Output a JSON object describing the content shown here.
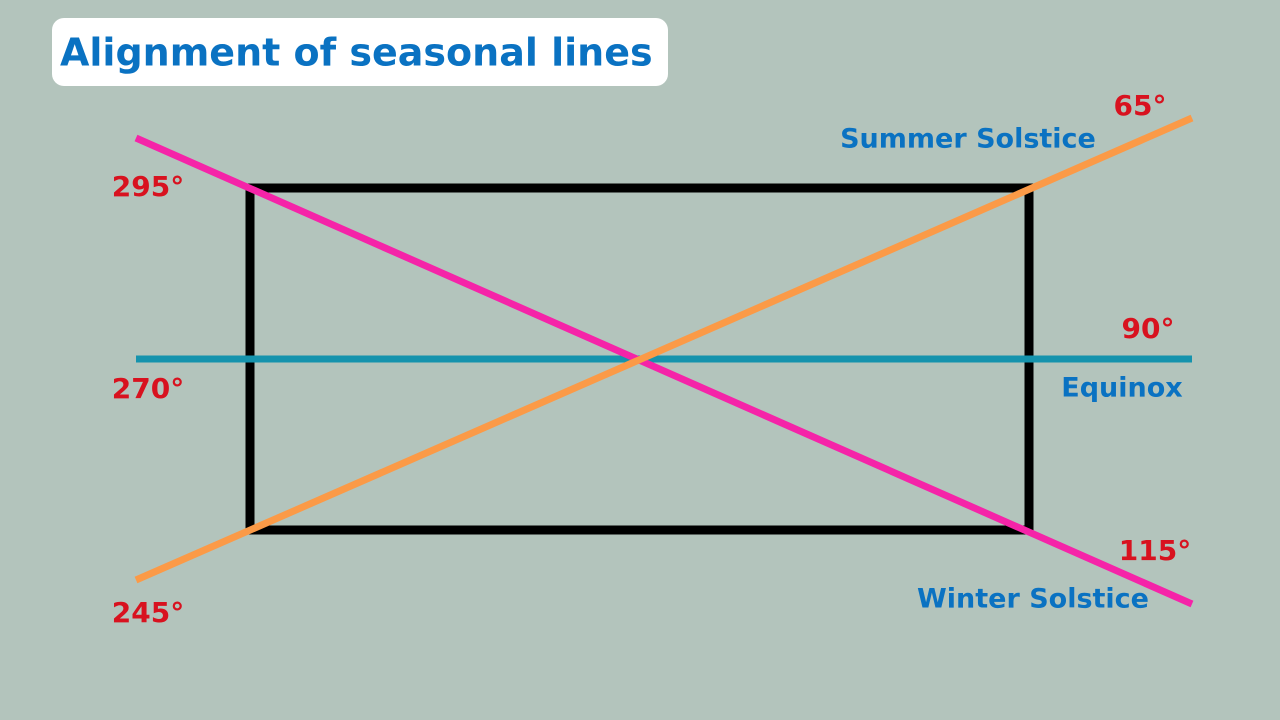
{
  "title": "Alignment of seasonal lines",
  "lines": [
    {
      "name": "Summer Solstice",
      "start_angle": "245°",
      "end_angle": "65°"
    },
    {
      "name": "Equinox",
      "start_angle": "270°",
      "end_angle": "90°"
    },
    {
      "name": "Winter Solstice",
      "start_angle": "295°",
      "end_angle": "115°"
    }
  ]
}
